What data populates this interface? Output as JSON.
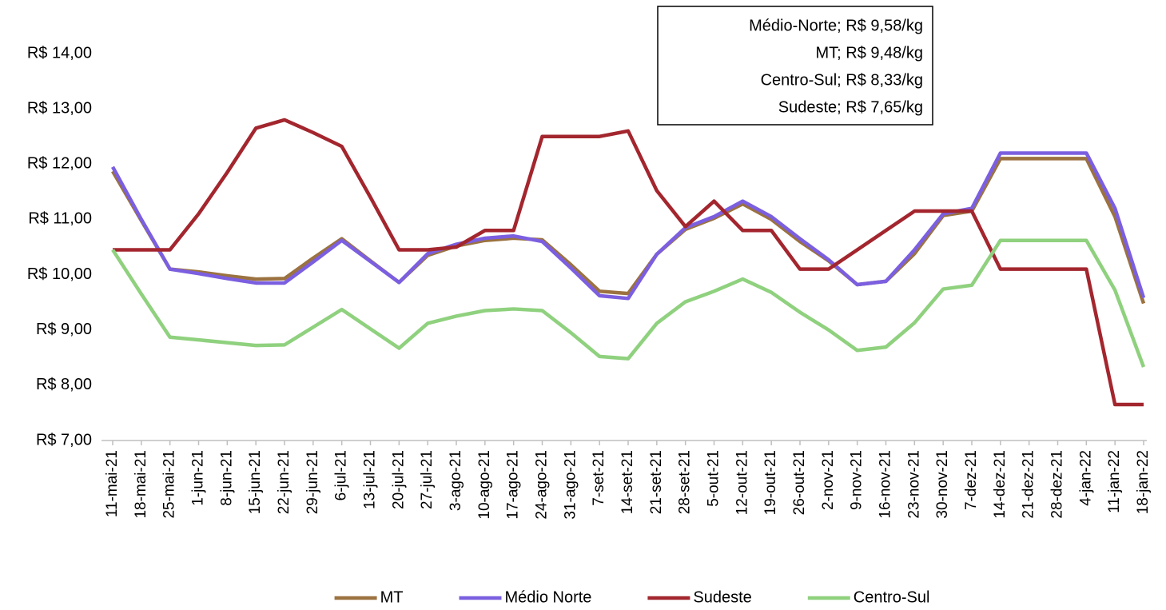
{
  "chart_data": {
    "type": "line",
    "categories": [
      "11-mai-21",
      "18-mai-21",
      "25-mai-21",
      "1-jun-21",
      "8-jun-21",
      "15-jun-21",
      "22-jun-21",
      "29-jun-21",
      "6-jul-21",
      "13-jul-21",
      "20-jul-21",
      "27-jul-21",
      "3-ago-21",
      "10-ago-21",
      "17-ago-21",
      "24-ago-21",
      "31-ago-21",
      "7-set-21",
      "14-set-21",
      "21-set-21",
      "28-set-21",
      "5-out-21",
      "12-out-21",
      "19-out-21",
      "26-out-21",
      "2-nov-21",
      "9-nov-21",
      "16-nov-21",
      "23-nov-21",
      "30-nov-21",
      "7-dez-21",
      "14-dez-21",
      "21-dez-21",
      "28-dez-21",
      "4-jan-22",
      "11-jan-22",
      "18-jan-22"
    ],
    "series": [
      {
        "name": "MT",
        "color": "#9b7240",
        "values": [
          11.87,
          10.98,
          10.1,
          10.05,
          9.98,
          9.92,
          9.93,
          10.3,
          10.65,
          10.25,
          9.86,
          10.35,
          10.52,
          10.62,
          10.66,
          10.63,
          10.18,
          9.7,
          9.66,
          10.37,
          10.82,
          11.02,
          11.28,
          11.0,
          10.6,
          10.25,
          9.82,
          9.88,
          10.38,
          11.07,
          11.15,
          12.1,
          12.1,
          12.1,
          12.1,
          11.05,
          9.48
        ]
      },
      {
        "name": "Médio Norte",
        "color": "#7b5fe0",
        "values": [
          11.95,
          11.0,
          10.1,
          10.02,
          9.93,
          9.85,
          9.85,
          10.23,
          10.62,
          10.24,
          9.86,
          10.38,
          10.55,
          10.66,
          10.7,
          10.6,
          10.12,
          9.62,
          9.57,
          10.37,
          10.85,
          11.05,
          11.33,
          11.05,
          10.65,
          10.27,
          9.82,
          9.88,
          10.45,
          11.1,
          11.2,
          12.2,
          12.2,
          12.2,
          12.2,
          11.2,
          9.58
        ]
      },
      {
        "name": "Sudeste",
        "color": "#a3262e",
        "values": [
          10.45,
          10.45,
          10.45,
          11.1,
          11.85,
          12.65,
          12.8,
          12.57,
          12.32,
          11.4,
          10.45,
          10.45,
          10.5,
          10.8,
          10.8,
          12.5,
          12.5,
          12.5,
          12.6,
          11.52,
          10.87,
          11.33,
          10.8,
          10.8,
          10.1,
          10.1,
          10.45,
          10.8,
          11.15,
          11.15,
          11.15,
          10.1,
          10.1,
          10.1,
          10.1,
          7.65,
          7.65
        ]
      },
      {
        "name": "Centro-Sul",
        "color": "#8fd17e",
        "values": [
          10.45,
          9.65,
          8.87,
          8.82,
          8.77,
          8.72,
          8.73,
          9.05,
          9.37,
          9.02,
          8.67,
          9.12,
          9.25,
          9.35,
          9.38,
          9.35,
          8.95,
          8.52,
          8.48,
          9.12,
          9.51,
          9.7,
          9.92,
          9.68,
          9.32,
          9.0,
          8.63,
          8.69,
          9.13,
          9.74,
          9.81,
          10.62,
          10.62,
          10.62,
          10.62,
          9.72,
          8.33
        ]
      }
    ],
    "ylim": [
      7,
      14
    ],
    "yticks": [
      {
        "value": 7,
        "label": "R$ 7,00"
      },
      {
        "value": 8,
        "label": "R$ 8,00"
      },
      {
        "value": 9,
        "label": "R$ 9,00"
      },
      {
        "value": 10,
        "label": "R$ 10,00"
      },
      {
        "value": 11,
        "label": "R$ 11,00"
      },
      {
        "value": 12,
        "label": "R$ 12,00"
      },
      {
        "value": 13,
        "label": "R$ 13,00"
      },
      {
        "value": 14,
        "label": "R$ 14,00"
      }
    ],
    "annotations": [
      "Médio-Norte; R$ 9,58/kg",
      "MT; R$ 9,48/kg",
      "Centro-Sul; R$ 8,33/kg",
      "Sudeste; R$ 7,65/kg"
    ],
    "legend": "bottom"
  }
}
